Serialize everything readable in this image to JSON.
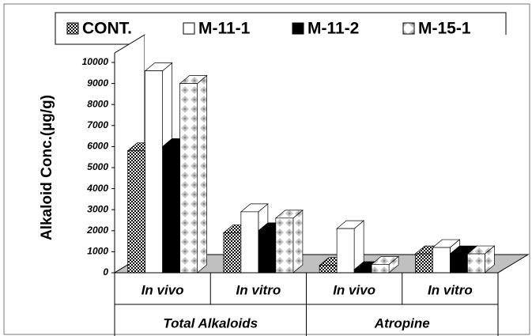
{
  "chart_data": {
    "type": "bar3d",
    "y_label": "Alkaloid Conc.(µg/g)",
    "categories": [
      "In vivo",
      "In vitro",
      "In vivo",
      "In vitro"
    ],
    "groups": [
      "Total Alkaloids",
      "Atropine"
    ],
    "series": [
      {
        "name": "CONT.",
        "color": "#ffffff",
        "pattern": "checker",
        "values": [
          5800,
          1900,
          350,
          900
        ]
      },
      {
        "name": "M-11-1",
        "color": "#ffffff",
        "values": [
          9600,
          2900,
          2100,
          1200
        ]
      },
      {
        "name": "M-11-2",
        "color": "#000000",
        "values": [
          6000,
          2000,
          150,
          900
        ]
      },
      {
        "name": "M-15-1",
        "color": "#ffffff",
        "pattern": "diamond",
        "values": [
          9000,
          2600,
          400,
          900
        ]
      }
    ],
    "ylim": [
      0,
      10000
    ],
    "yticks": [
      0,
      1000,
      2000,
      3000,
      4000,
      5000,
      6000,
      7000,
      8000,
      9000,
      10000
    ],
    "grid": false
  }
}
